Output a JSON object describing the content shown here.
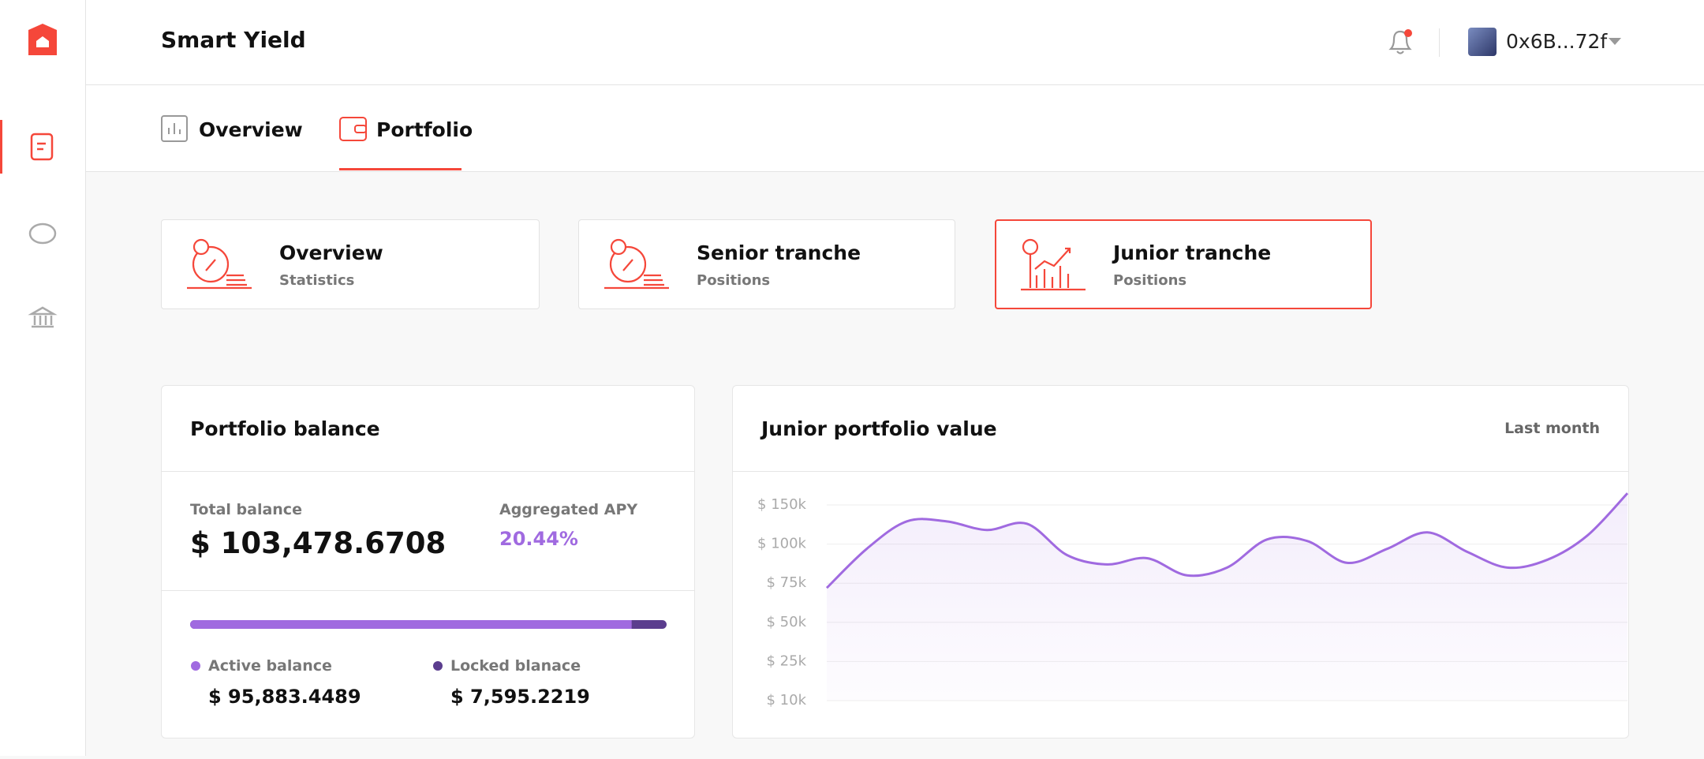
{
  "header": {
    "title": "Smart Yield",
    "address": "0x6B...72f"
  },
  "tabs": [
    "Overview",
    "Portfolio"
  ],
  "cards": [
    {
      "title": "Overview",
      "subtitle": "Statistics"
    },
    {
      "title": "Senior tranche",
      "subtitle": "Positions"
    },
    {
      "title": "Junior tranche",
      "subtitle": "Positions"
    }
  ],
  "balance": {
    "title": "Portfolio balance",
    "total_label": "Total balance",
    "total": "$ 103,478.6708",
    "apy_label": "Aggregated APY",
    "apy": "20.44%",
    "active_label": "Active balance",
    "active": {
      "value": 95883.4489,
      "label": "$ 95,883.4489"
    },
    "locked_label": "Locked blanace",
    "locked": {
      "value": 7595.2219,
      "label": "$ 7,595.2219"
    },
    "active_color": "#a06ae0",
    "locked_color": "#5b3d8e"
  },
  "chart_data": {
    "type": "line",
    "title": "Junior portfolio value",
    "period": "Last month",
    "color": "#a06ae0",
    "grid": true,
    "yticks": [
      {
        "value": 10000,
        "label": "$ 10k"
      },
      {
        "value": 25000,
        "label": "$ 25k"
      },
      {
        "value": 50000,
        "label": "$ 50k"
      },
      {
        "value": 75000,
        "label": "$ 75k"
      },
      {
        "value": 100000,
        "label": "$ 100k"
      },
      {
        "value": 150000,
        "label": "$ 150k"
      }
    ],
    "values": [
      72000,
      97000,
      129000,
      129000,
      118000,
      126000,
      93000,
      87000,
      91000,
      80000,
      85000,
      106000,
      104000,
      88000,
      97000,
      115000,
      95000,
      85000,
      90000,
      111000,
      165000
    ]
  }
}
